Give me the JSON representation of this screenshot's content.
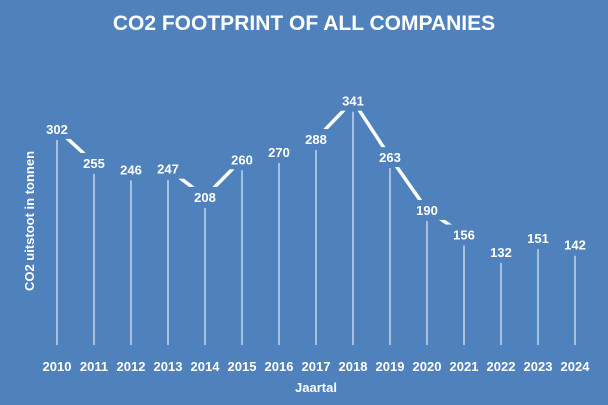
{
  "chart_data": {
    "type": "line",
    "title": "CO2 FOOTPRINT OF ALL COMPANIES",
    "xlabel": "Jaartal",
    "ylabel": "CO2 uitstoot in tonnen",
    "categories": [
      "2010",
      "2011",
      "2012",
      "2013",
      "2014",
      "2015",
      "2016",
      "2017",
      "2018",
      "2019",
      "2020",
      "2021",
      "2022",
      "2023",
      "2024"
    ],
    "values": [
      302,
      255,
      246,
      247,
      208,
      260,
      270,
      288,
      341,
      263,
      190,
      156,
      132,
      151,
      142
    ],
    "ylim": [
      0,
      400
    ],
    "grid": false,
    "legend": "none",
    "drop_lines": true,
    "data_labels": true,
    "colors": {
      "background": "#4f81bd",
      "line": "#ffffff",
      "text": "#ffffff"
    }
  }
}
